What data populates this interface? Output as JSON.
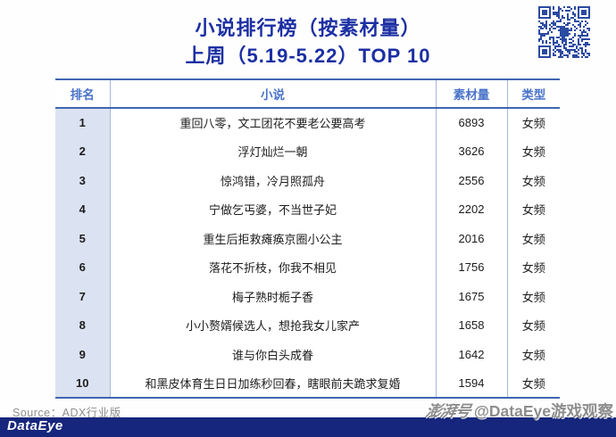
{
  "title": {
    "line1": "小说排行榜（按素材量）",
    "line2": "上周（5.19-5.22）TOP 10"
  },
  "chart_data": {
    "type": "table",
    "title": "小说排行榜（按素材量）",
    "subtitle": "上周（5.19-5.22）TOP 10",
    "columns": [
      "排名",
      "小说",
      "素材量",
      "类型"
    ],
    "rows": [
      [
        "1",
        "重回八零，文工团花不要老公要高考",
        "6893",
        "女频"
      ],
      [
        "2",
        "浮灯灿烂一朝",
        "3626",
        "女频"
      ],
      [
        "3",
        "惊鸿错，冷月照孤舟",
        "2556",
        "女频"
      ],
      [
        "4",
        "宁做乞丐婆，不当世子妃",
        "2202",
        "女频"
      ],
      [
        "5",
        "重生后拒救瘫痪京圈小公主",
        "2016",
        "女频"
      ],
      [
        "6",
        "落花不折枝，你我不相见",
        "1756",
        "女频"
      ],
      [
        "7",
        "梅子熟时栀子香",
        "1675",
        "女频"
      ],
      [
        "8",
        "小小赘婿候选人，想抢我女儿家产",
        "1658",
        "女频"
      ],
      [
        "9",
        "谁与你白头成眷",
        "1642",
        "女频"
      ],
      [
        "10",
        "和黑皮体育生日日加练秒回春，瞎眼前夫跪求复婚",
        "1594",
        "女频"
      ]
    ]
  },
  "footer": {
    "source_label": "Source：ADX行业版",
    "brand": "DataEye",
    "watermark_logo": "澎湃号",
    "watermark_text": "@DataEye游戏观察"
  },
  "icons": {
    "qr_code": "qr-code"
  },
  "colors": {
    "title_blue": "#1c2fa3",
    "header_text_blue": "#4a74c9",
    "table_line_blue": "#4165b0",
    "table_divider_blue": "#a6b8de",
    "rank_column_bg": "#dbe3f2",
    "bottom_bar_navy": "#16267c",
    "qr_module_blue": "#2b4aa2",
    "source_gray": "#8f8f8f",
    "watermark_gray": "#8d8d8d"
  }
}
